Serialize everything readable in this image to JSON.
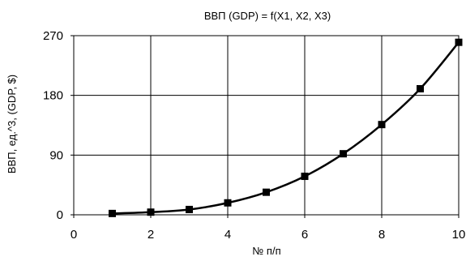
{
  "chart_data": {
    "type": "line",
    "title": "ВВП (GDP) = f(X1, X2, X3)",
    "xlabel": "№ п/п",
    "ylabel": "ВВП, ед.^3, (GDP, $)",
    "xlim": [
      0,
      10
    ],
    "ylim": [
      0,
      270
    ],
    "xticks": [
      0,
      2,
      4,
      6,
      8,
      10
    ],
    "yticks": [
      0,
      90,
      180,
      270
    ],
    "grid": true,
    "legend": "none",
    "series": [
      {
        "x": [
          1,
          2,
          3,
          4,
          5,
          6,
          7,
          8,
          9,
          10
        ],
        "values": [
          2,
          4,
          8,
          18,
          34,
          58,
          92,
          136,
          190,
          260
        ]
      }
    ]
  }
}
